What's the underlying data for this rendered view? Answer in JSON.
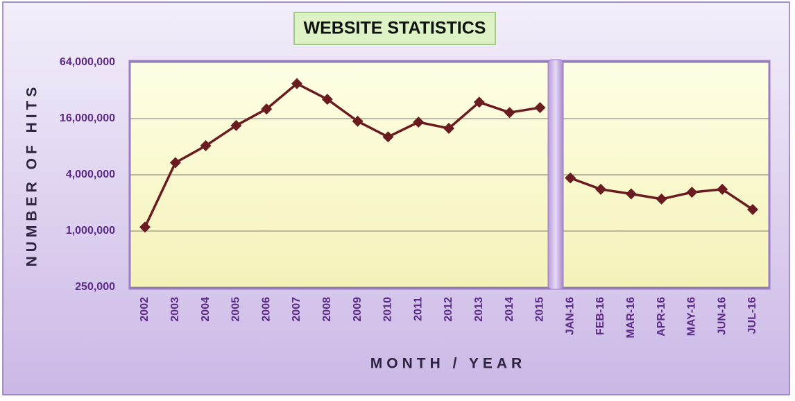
{
  "chart_data": {
    "type": "line",
    "title": "WEBSITE STATISTICS",
    "x_label": "MONTH / YEAR",
    "y_label": "NUMBER OF HITS",
    "y_scale": "log",
    "grid": true,
    "categories": [
      "2002",
      "2003",
      "2004",
      "2005",
      "2006",
      "2007",
      "2008",
      "2009",
      "2010",
      "2011",
      "2012",
      "2013",
      "2014",
      "2015",
      "JAN-16",
      "FEB-16",
      "MAR-16",
      "APR-16",
      "MAY-16",
      "JUN-16",
      "JUL-16"
    ],
    "series": [
      {
        "color": "#6a1b1f",
        "values": [
          1100000,
          5400000,
          8200000,
          13500000,
          20300000,
          38000000,
          25800000,
          15000000,
          10200000,
          14700000,
          12600000,
          24000000,
          18600000,
          21000000,
          null,
          null,
          null,
          null,
          null,
          null,
          null
        ]
      },
      {
        "color": "#6a1b1f",
        "values": [
          null,
          null,
          null,
          null,
          null,
          null,
          null,
          null,
          null,
          null,
          null,
          null,
          null,
          null,
          3700000,
          2800000,
          2500000,
          2200000,
          2600000,
          2800000,
          1700000
        ]
      }
    ],
    "ylim": [
      250000,
      64000000
    ],
    "yticks": [
      {
        "value": 250000,
        "label": "250,000"
      },
      {
        "value": 1000000,
        "label": "1,000,000"
      },
      {
        "value": 4000000,
        "label": "4,000,000"
      },
      {
        "value": 16000000,
        "label": "16,000,000"
      },
      {
        "value": 64000000,
        "label": "64,000,000"
      }
    ]
  }
}
